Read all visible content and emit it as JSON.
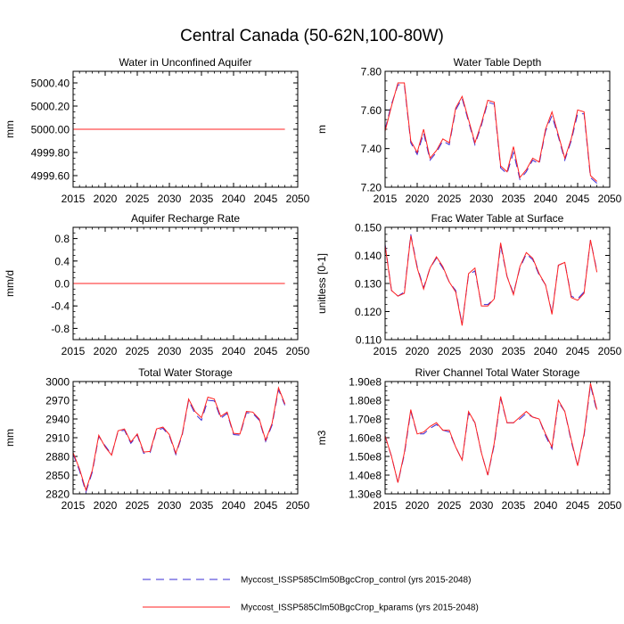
{
  "figure": {
    "title": "Central Canada (50-62N,100-80W)",
    "colors": {
      "control": "#3a2bd6",
      "kparams": "#ff2020",
      "axis": "#000000"
    }
  },
  "legend": {
    "entries": [
      {
        "label": "Myccost_ISSP585Clm50BgcCrop_control (yrs 2015-2048)",
        "color": "#3a2bd6",
        "style": "dashed"
      },
      {
        "label": "Myccost_ISSP585Clm50BgcCrop_kparams (yrs 2015-2048)",
        "color": "#ff2020",
        "style": "solid"
      }
    ]
  },
  "chart_data": [
    {
      "type": "line",
      "title": "Water in Unconfined Aquifer",
      "xlabel": "",
      "ylabel": "mm",
      "xlim": [
        2015,
        2050
      ],
      "ylim": [
        4999.5,
        5000.5
      ],
      "xticks": [
        2015,
        2020,
        2025,
        2030,
        2035,
        2040,
        2045,
        2050
      ],
      "xtick_labels": [
        "2015",
        "2020",
        "2025",
        "2030",
        "2035",
        "2040",
        "2045",
        "2050"
      ],
      "yticks": [
        4999.6,
        4999.8,
        5000.0,
        5000.2,
        5000.4
      ],
      "ytick_labels": [
        "4999.60",
        "4999.80",
        "5000.00",
        "5000.20",
        "5000.40"
      ],
      "x": [
        2015,
        2016,
        2017,
        2018,
        2019,
        2020,
        2021,
        2022,
        2023,
        2024,
        2025,
        2026,
        2027,
        2028,
        2029,
        2030,
        2031,
        2032,
        2033,
        2034,
        2035,
        2036,
        2037,
        2038,
        2039,
        2040,
        2041,
        2042,
        2043,
        2044,
        2045,
        2046,
        2047,
        2048
      ],
      "series": [
        {
          "name": "Myccost_ISSP585Clm50BgcCrop_control",
          "values": [
            5000,
            5000,
            5000,
            5000,
            5000,
            5000,
            5000,
            5000,
            5000,
            5000,
            5000,
            5000,
            5000,
            5000,
            5000,
            5000,
            5000,
            5000,
            5000,
            5000,
            5000,
            5000,
            5000,
            5000,
            5000,
            5000,
            5000,
            5000,
            5000,
            5000,
            5000,
            5000,
            5000,
            5000
          ]
        },
        {
          "name": "Myccost_ISSP585Clm50BgcCrop_kparams",
          "values": [
            5000,
            5000,
            5000,
            5000,
            5000,
            5000,
            5000,
            5000,
            5000,
            5000,
            5000,
            5000,
            5000,
            5000,
            5000,
            5000,
            5000,
            5000,
            5000,
            5000,
            5000,
            5000,
            5000,
            5000,
            5000,
            5000,
            5000,
            5000,
            5000,
            5000,
            5000,
            5000,
            5000,
            5000
          ]
        }
      ]
    },
    {
      "type": "line",
      "title": "Water Table Depth",
      "xlabel": "",
      "ylabel": "m",
      "xlim": [
        2015,
        2050
      ],
      "ylim": [
        7.2,
        7.8
      ],
      "xticks": [
        2015,
        2020,
        2025,
        2030,
        2035,
        2040,
        2045,
        2050
      ],
      "xtick_labels": [
        "2015",
        "2020",
        "2025",
        "2030",
        "2035",
        "2040",
        "2045",
        "2050"
      ],
      "yticks": [
        7.2,
        7.4,
        7.6,
        7.8
      ],
      "ytick_labels": [
        "7.20",
        "7.40",
        "7.60",
        "7.80"
      ],
      "x": [
        2015,
        2016,
        2017,
        2018,
        2019,
        2020,
        2021,
        2022,
        2023,
        2024,
        2025,
        2026,
        2027,
        2028,
        2029,
        2030,
        2031,
        2032,
        2033,
        2034,
        2035,
        2036,
        2037,
        2038,
        2039,
        2040,
        2041,
        2042,
        2043,
        2044,
        2045,
        2046,
        2047,
        2048
      ],
      "series": [
        {
          "name": "Myccost_ISSP585Clm50BgcCrop_control",
          "values": [
            7.5,
            7.63,
            7.73,
            7.73,
            7.43,
            7.37,
            7.48,
            7.34,
            7.38,
            7.44,
            7.42,
            7.6,
            7.66,
            7.54,
            7.42,
            7.52,
            7.64,
            7.63,
            7.3,
            7.27,
            7.38,
            7.24,
            7.28,
            7.34,
            7.32,
            7.49,
            7.57,
            7.46,
            7.34,
            7.44,
            7.58,
            7.58,
            7.25,
            7.22
          ]
        },
        {
          "name": "Myccost_ISSP585Clm50BgcCrop_kparams",
          "values": [
            7.49,
            7.62,
            7.74,
            7.74,
            7.44,
            7.38,
            7.5,
            7.35,
            7.39,
            7.45,
            7.43,
            7.61,
            7.67,
            7.55,
            7.43,
            7.53,
            7.65,
            7.64,
            7.31,
            7.28,
            7.41,
            7.25,
            7.29,
            7.35,
            7.33,
            7.5,
            7.59,
            7.47,
            7.35,
            7.45,
            7.6,
            7.59,
            7.26,
            7.23
          ]
        }
      ]
    },
    {
      "type": "line",
      "title": "Aquifer Recharge Rate",
      "xlabel": "",
      "ylabel": "mm/d",
      "xlim": [
        2015,
        2050
      ],
      "ylim": [
        -1.0,
        1.0
      ],
      "xticks": [
        2015,
        2020,
        2025,
        2030,
        2035,
        2040,
        2045,
        2050
      ],
      "xtick_labels": [
        "2015",
        "2020",
        "2025",
        "2030",
        "2035",
        "2040",
        "2045",
        "2050"
      ],
      "yticks": [
        -0.8,
        -0.4,
        0.0,
        0.4,
        0.8
      ],
      "ytick_labels": [
        "-0.8",
        "-0.4",
        "0.0",
        "0.4",
        "0.8"
      ],
      "x": [
        2015,
        2016,
        2017,
        2018,
        2019,
        2020,
        2021,
        2022,
        2023,
        2024,
        2025,
        2026,
        2027,
        2028,
        2029,
        2030,
        2031,
        2032,
        2033,
        2034,
        2035,
        2036,
        2037,
        2038,
        2039,
        2040,
        2041,
        2042,
        2043,
        2044,
        2045,
        2046,
        2047,
        2048
      ],
      "series": [
        {
          "name": "Myccost_ISSP585Clm50BgcCrop_control",
          "values": [
            0,
            0,
            0,
            0,
            0,
            0,
            0,
            0,
            0,
            0,
            0,
            0,
            0,
            0,
            0,
            0,
            0,
            0,
            0,
            0,
            0,
            0,
            0,
            0,
            0,
            0,
            0,
            0,
            0,
            0,
            0,
            0,
            0,
            0
          ]
        },
        {
          "name": "Myccost_ISSP585Clm50BgcCrop_kparams",
          "values": [
            0,
            0,
            0,
            0,
            0,
            0,
            0,
            0,
            0,
            0,
            0,
            0,
            0,
            0,
            0,
            0,
            0,
            0,
            0,
            0,
            0,
            0,
            0,
            0,
            0,
            0,
            0,
            0,
            0,
            0,
            0,
            0,
            0,
            0
          ]
        }
      ]
    },
    {
      "type": "line",
      "title": "Frac Water Table at Surface",
      "xlabel": "",
      "ylabel": "unitless [0-1]",
      "xlim": [
        2015,
        2050
      ],
      "ylim": [
        0.11,
        0.15
      ],
      "xticks": [
        2015,
        2020,
        2025,
        2030,
        2035,
        2040,
        2045,
        2050
      ],
      "xtick_labels": [
        "2015",
        "2020",
        "2025",
        "2030",
        "2035",
        "2040",
        "2045",
        "2050"
      ],
      "yticks": [
        0.11,
        0.12,
        0.13,
        0.14,
        0.15
      ],
      "ytick_labels": [
        "0.110",
        "0.120",
        "0.130",
        "0.140",
        "0.150"
      ],
      "x": [
        2015,
        2016,
        2017,
        2018,
        2019,
        2020,
        2021,
        2022,
        2023,
        2024,
        2025,
        2026,
        2027,
        2028,
        2029,
        2030,
        2031,
        2032,
        2033,
        2034,
        2035,
        2036,
        2037,
        2038,
        2039,
        2040,
        2041,
        2042,
        2043,
        2044,
        2045,
        2046,
        2047,
        2048
      ],
      "series": [
        {
          "name": "Myccost_ISSP585Clm50BgcCrop_control",
          "values": [
            0.144,
            0.1275,
            0.1255,
            0.127,
            0.1475,
            0.136,
            0.1285,
            0.1355,
            0.139,
            0.1355,
            0.1305,
            0.1275,
            0.1155,
            0.133,
            0.1345,
            0.1225,
            0.1225,
            0.1245,
            0.1435,
            0.1325,
            0.1265,
            0.1355,
            0.1405,
            0.1385,
            0.133,
            0.1295,
            0.1195,
            0.1365,
            0.1375,
            0.1255,
            0.1245,
            0.127,
            0.1455,
            0.1345
          ]
        },
        {
          "name": "Myccost_ISSP585Clm50BgcCrop_kparams",
          "values": [
            0.1435,
            0.1275,
            0.1255,
            0.1265,
            0.147,
            0.1355,
            0.128,
            0.1355,
            0.1395,
            0.136,
            0.1305,
            0.127,
            0.115,
            0.1335,
            0.1355,
            0.122,
            0.122,
            0.1245,
            0.1445,
            0.1325,
            0.126,
            0.136,
            0.141,
            0.139,
            0.1335,
            0.1295,
            0.119,
            0.1365,
            0.1375,
            0.125,
            0.124,
            0.1265,
            0.1455,
            0.134
          ]
        }
      ]
    },
    {
      "type": "line",
      "title": "Total Water Storage",
      "xlabel": "",
      "ylabel": "mm",
      "xlim": [
        2015,
        2050
      ],
      "ylim": [
        2820,
        3000
      ],
      "xticks": [
        2015,
        2020,
        2025,
        2030,
        2035,
        2040,
        2045,
        2050
      ],
      "xtick_labels": [
        "2015",
        "2020",
        "2025",
        "2030",
        "2035",
        "2040",
        "2045",
        "2050"
      ],
      "yticks": [
        2820,
        2850,
        2880,
        2910,
        2940,
        2970,
        3000
      ],
      "ytick_labels": [
        "2820",
        "2850",
        "2880",
        "2910",
        "2940",
        "2970",
        "3000"
      ],
      "x": [
        2015,
        2016,
        2017,
        2018,
        2019,
        2020,
        2021,
        2022,
        2023,
        2024,
        2025,
        2026,
        2027,
        2028,
        2029,
        2030,
        2031,
        2032,
        2033,
        2034,
        2035,
        2036,
        2037,
        2038,
        2039,
        2040,
        2041,
        2042,
        2043,
        2044,
        2045,
        2046,
        2047,
        2048
      ],
      "series": [
        {
          "name": "Myccost_ISSP585Clm50BgcCrop_control",
          "values": [
            2884,
            2857,
            2823,
            2855,
            2912,
            2897,
            2883,
            2920,
            2922,
            2901,
            2914,
            2885,
            2886,
            2922,
            2925,
            2913,
            2883,
            2914,
            2970,
            2948,
            2938,
            2970,
            2969,
            2941,
            2949,
            2915,
            2914,
            2950,
            2949,
            2938,
            2904,
            2930,
            2987,
            2962
          ]
        },
        {
          "name": "Myccost_ISSP585Clm50BgcCrop_kparams",
          "values": [
            2886,
            2860,
            2826,
            2858,
            2914,
            2895,
            2882,
            2921,
            2924,
            2903,
            2916,
            2887,
            2888,
            2924,
            2927,
            2915,
            2885,
            2916,
            2972,
            2952,
            2942,
            2975,
            2972,
            2944,
            2951,
            2917,
            2916,
            2952,
            2951,
            2940,
            2906,
            2933,
            2990,
            2964
          ]
        }
      ]
    },
    {
      "type": "line",
      "title": "River Channel Total Water Storage",
      "xlabel": "",
      "ylabel": "m3",
      "xlim": [
        2015,
        2050
      ],
      "ylim": [
        130000000,
        190000000
      ],
      "xticks": [
        2015,
        2020,
        2025,
        2030,
        2035,
        2040,
        2045,
        2050
      ],
      "xtick_labels": [
        "2015",
        "2020",
        "2025",
        "2030",
        "2035",
        "2040",
        "2045",
        "2050"
      ],
      "yticks": [
        130000000,
        140000000,
        150000000,
        160000000,
        170000000,
        180000000,
        190000000
      ],
      "ytick_labels": [
        "1.30e8",
        "1.40e8",
        "1.50e8",
        "1.60e8",
        "1.70e8",
        "1.80e8",
        "1.90e8"
      ],
      "x": [
        2015,
        2016,
        2017,
        2018,
        2019,
        2020,
        2021,
        2022,
        2023,
        2024,
        2025,
        2026,
        2027,
        2028,
        2029,
        2030,
        2031,
        2032,
        2033,
        2034,
        2035,
        2036,
        2037,
        2038,
        2039,
        2040,
        2041,
        2042,
        2043,
        2044,
        2045,
        2046,
        2047,
        2048
      ],
      "series": [
        {
          "name": "Myccost_ISSP585Clm50BgcCrop_control",
          "values": [
            161000000,
            150000000,
            136000000,
            151000000,
            174000000,
            162000000,
            162000000,
            165000000,
            167000000,
            164000000,
            163000000,
            155000000,
            148000000,
            173000000,
            168000000,
            152000000,
            140000000,
            156000000,
            181000000,
            168000000,
            168000000,
            170000000,
            173000000,
            171000000,
            170000000,
            161000000,
            154000000,
            179000000,
            174000000,
            158000000,
            145000000,
            161000000,
            188000000,
            174000000
          ]
        },
        {
          "name": "Myccost_ISSP585Clm50BgcCrop_kparams",
          "values": [
            161000000,
            150000000,
            136000000,
            152000000,
            175000000,
            162000000,
            163000000,
            166000000,
            168000000,
            164000000,
            164000000,
            155000000,
            148000000,
            174000000,
            168000000,
            152000000,
            140000000,
            157000000,
            182000000,
            168000000,
            168000000,
            171000000,
            174000000,
            171000000,
            170000000,
            162000000,
            155000000,
            180000000,
            174000000,
            159000000,
            145000000,
            162000000,
            189000000,
            175000000
          ]
        }
      ]
    }
  ]
}
